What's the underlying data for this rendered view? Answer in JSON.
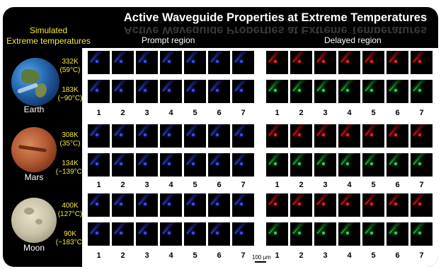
{
  "title": "Active Waveguide Properties at Extreme Temperatures",
  "simulated_label": [
    "Simulated",
    "Extreme temperatures"
  ],
  "regions": {
    "prompt": "Prompt region",
    "delayed": "Delayed region"
  },
  "scale_label": "100 μm",
  "colors": {
    "prompt": "#3b4cff",
    "delayed_top": "#ff2020",
    "delayed_bottom": "#22e04a",
    "temp_text": "#f3e93a"
  },
  "rows": [
    {
      "planet": "Earth",
      "planet_icon": "earth-icon",
      "high": {
        "k": "332K",
        "c": "(59°C)"
      },
      "low": {
        "k": "183K",
        "c": "(−90°C)"
      }
    },
    {
      "planet": "Mars",
      "planet_icon": "mars-icon",
      "high": {
        "k": "308K",
        "c": "(35°C)"
      },
      "low": {
        "k": "134K",
        "c": "(−139°C)"
      }
    },
    {
      "planet": "Moon",
      "planet_icon": "moon-icon",
      "high": {
        "k": "400K",
        "c": "(127°C)"
      },
      "low": {
        "k": "90K",
        "c": "(−183°C)"
      }
    }
  ],
  "column_numbers": [
    "1",
    "2",
    "3",
    "4",
    "5",
    "6",
    "7"
  ]
}
